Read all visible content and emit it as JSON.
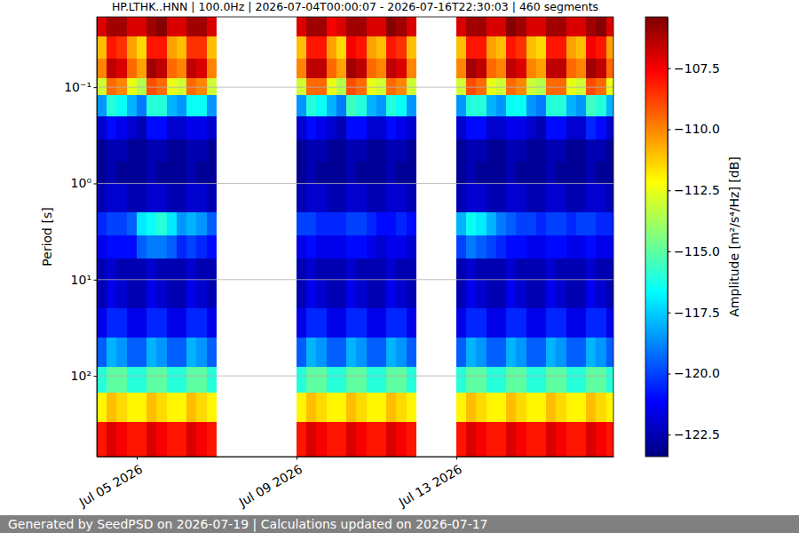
{
  "chart_data": {
    "type": "heatmap",
    "title": "HP.LTHK..HNN | 100.0Hz | 2026-07-04T00:00:07 - 2026-07-16T22:30:03 | 460 segments",
    "footer": "Generated by SeedPSD on 2026-07-19 | Calculations updated on 2026-07-17",
    "y_label": "Period [s]",
    "log": "y",
    "grid": "y",
    "xlim": [
      "2026-07-04T00:00:07",
      "2026-07-16T22:30:03"
    ],
    "xticks": [
      {
        "value": "2026-07-05T00:00:00",
        "label": "Jul 05 2026"
      },
      {
        "value": "2026-07-09T00:00:00",
        "label": "Jul 09 2026"
      },
      {
        "value": "2026-07-13T00:00:00",
        "label": "Jul 13 2026"
      }
    ],
    "ylim": [
      0.0186,
      690
    ],
    "yticks": [
      {
        "value": 0.1,
        "label": "10⁻¹"
      },
      {
        "value": 1,
        "label": "10⁰"
      },
      {
        "value": 10,
        "label": "10¹"
      },
      {
        "value": 100,
        "label": "10²"
      }
    ],
    "x_edges": [
      "2026-07-04T00:00:00",
      "2026-07-04T06:00:00",
      "2026-07-04T12:00:00",
      "2026-07-04T18:00:00",
      "2026-07-05T00:00:00",
      "2026-07-05T06:00:00",
      "2026-07-05T12:00:00",
      "2026-07-05T18:00:00",
      "2026-07-06T00:00:00",
      "2026-07-06T06:00:00",
      "2026-07-06T12:00:00",
      "2026-07-06T18:00:00",
      "2026-07-07T00:00:00",
      "2026-07-07T06:00:00",
      "2026-07-07T12:00:00",
      "2026-07-07T18:00:00",
      "2026-07-08T00:00:00",
      "2026-07-08T06:00:00",
      "2026-07-08T12:00:00",
      "2026-07-08T18:00:00",
      "2026-07-09T00:00:00",
      "2026-07-09T06:00:00",
      "2026-07-09T12:00:00",
      "2026-07-09T18:00:00",
      "2026-07-10T00:00:00",
      "2026-07-10T06:00:00",
      "2026-07-10T12:00:00",
      "2026-07-10T18:00:00",
      "2026-07-11T00:00:00",
      "2026-07-11T06:00:00",
      "2026-07-11T12:00:00",
      "2026-07-11T18:00:00",
      "2026-07-12T00:00:00",
      "2026-07-12T06:00:00",
      "2026-07-12T12:00:00",
      "2026-07-12T18:00:00",
      "2026-07-13T00:00:00",
      "2026-07-13T06:00:00",
      "2026-07-13T12:00:00",
      "2026-07-13T18:00:00",
      "2026-07-14T00:00:00",
      "2026-07-14T06:00:00",
      "2026-07-14T12:00:00",
      "2026-07-14T18:00:00",
      "2026-07-15T00:00:00",
      "2026-07-15T06:00:00",
      "2026-07-15T12:00:00",
      "2026-07-15T18:00:00",
      "2026-07-16T00:00:00",
      "2026-07-16T06:00:00",
      "2026-07-16T12:00:00",
      "2026-07-16T18:00:00",
      "2026-07-17T00:00:00"
    ],
    "y_edges": [
      0.0186,
      0.03,
      0.05,
      0.08,
      0.12,
      0.2,
      0.35,
      0.6,
      1,
      2,
      3.5,
      6,
      10,
      20,
      40,
      80,
      150,
      300,
      690
    ],
    "z": [
      [
        -107,
        -106,
        -106,
        -107,
        -107,
        -106,
        -105.5,
        -107,
        -107,
        -106,
        -106,
        -107,
        null,
        null,
        null,
        null,
        null,
        null,
        null,
        null,
        -107,
        -106,
        -106,
        -107.5,
        -107,
        -106,
        -106,
        -107,
        -107,
        -105.5,
        -106,
        -107,
        null,
        null,
        null,
        null,
        -107,
        -106,
        -106,
        -107,
        -107,
        -105.5,
        -106,
        -107,
        -107,
        -106,
        -106,
        -107,
        -107,
        -106,
        -105.5,
        -107
      ],
      [
        -111,
        -108,
        -108.5,
        -110.5,
        -111.5,
        -108,
        -108,
        -110.5,
        -111,
        -108.5,
        -108.5,
        -111,
        null,
        null,
        null,
        null,
        null,
        null,
        null,
        null,
        -111,
        -108,
        -108,
        -110.5,
        -111.5,
        -107.5,
        -108,
        -110.5,
        -111,
        -108,
        -108.5,
        -111,
        null,
        null,
        null,
        null,
        -111,
        -108,
        -108,
        -110.5,
        -111,
        -108,
        -108.5,
        -111,
        -111.5,
        -108,
        -108,
        -110.5,
        -111,
        -107.5,
        -108,
        -110.5
      ],
      [
        -110,
        -106.5,
        -107,
        -109.5,
        -110.5,
        -106,
        -106.5,
        -109.5,
        -110,
        -106.5,
        -107,
        -110,
        null,
        null,
        null,
        null,
        null,
        null,
        null,
        null,
        -110,
        -106.5,
        -106.5,
        -109.5,
        -110.5,
        -106,
        -106.5,
        -109.5,
        -110,
        -106.5,
        -107,
        -110,
        null,
        null,
        null,
        null,
        -110,
        -106,
        -106.5,
        -109.5,
        -110,
        -106.5,
        -107,
        -110,
        -110.5,
        -106.5,
        -106.5,
        -109.5,
        -110,
        -106,
        -106.5,
        -109.5
      ],
      [
        -113,
        -109.5,
        -110,
        -112.5,
        -113.5,
        -109,
        -109.5,
        -112.5,
        -113,
        -109.5,
        -110,
        -113,
        null,
        null,
        null,
        null,
        null,
        null,
        null,
        null,
        -113,
        -109.5,
        -109.5,
        -112.5,
        -113.5,
        -109,
        -109.5,
        -112.5,
        -113,
        -109.5,
        -110,
        -113,
        null,
        null,
        null,
        null,
        -113,
        -109,
        -109.5,
        -112.5,
        -113,
        -109.5,
        -110,
        -113,
        -113.5,
        -109.5,
        -109.5,
        -112.5,
        -113,
        -109,
        -109.5,
        -112.5
      ],
      [
        -118.5,
        -116,
        -116.5,
        -118,
        -119,
        -116,
        -116,
        -118,
        -118.5,
        -116.5,
        -116.5,
        -118.5,
        null,
        null,
        null,
        null,
        null,
        null,
        null,
        null,
        -118.5,
        -116,
        -116.5,
        -118,
        -119,
        -115.5,
        -116,
        -118,
        -118.5,
        -116,
        -116.5,
        -118.5,
        null,
        null,
        null,
        null,
        -118.5,
        -116,
        -116,
        -118,
        -118.5,
        -116.5,
        -116.5,
        -118.5,
        -119,
        -116,
        -116,
        -118,
        -118.5,
        -115.5,
        -116,
        -118
      ],
      [
        -122,
        -121,
        -121.5,
        -122,
        -122.5,
        -121,
        -121,
        -122,
        -122,
        -121.5,
        -121.5,
        -122,
        null,
        null,
        null,
        null,
        null,
        null,
        null,
        null,
        -122,
        -121,
        -121.5,
        -122,
        -122.5,
        -121,
        -121,
        -122,
        -122,
        -121,
        -121.5,
        -122,
        null,
        null,
        null,
        null,
        -122,
        -121,
        -121,
        -122,
        -122,
        -121.5,
        -121.5,
        -122,
        -122.5,
        -121,
        -121,
        -122,
        -122,
        -120.5,
        -121,
        -122
      ],
      [
        -123,
        -122.5,
        -122.5,
        -123,
        -123,
        -122.5,
        -122.5,
        -123,
        -123,
        -122.5,
        -122.5,
        -123,
        null,
        null,
        null,
        null,
        null,
        null,
        null,
        null,
        -123,
        -122.5,
        -122.5,
        -123,
        -123,
        -122.5,
        -122.5,
        -123,
        -123,
        -122.5,
        -122.5,
        -123,
        null,
        null,
        null,
        null,
        -123,
        -122.5,
        -122.5,
        -123,
        -123,
        -122.5,
        -122.5,
        -123,
        -123,
        -122.5,
        -122.5,
        -123,
        -123,
        -122.5,
        -122.5,
        -123
      ],
      [
        -123,
        -122.5,
        -123,
        -123,
        -123,
        -122.5,
        -123,
        -123,
        -123,
        -122.5,
        -123,
        -123,
        null,
        null,
        null,
        null,
        null,
        null,
        null,
        null,
        -123,
        -122.5,
        -123,
        -123,
        -123,
        -122.5,
        -123,
        -123,
        -123,
        -122.5,
        -123,
        -123,
        null,
        null,
        null,
        null,
        -123,
        -122.5,
        -123,
        -123,
        -123,
        -122.5,
        -123,
        -123,
        -123,
        -122.5,
        -123,
        -123,
        -123,
        -122.5,
        -123,
        -123
      ],
      [
        -122.5,
        -122,
        -122,
        -122.5,
        -122.5,
        -122,
        -122,
        -122.5,
        -122.5,
        -122,
        -122,
        -122.5,
        null,
        null,
        null,
        null,
        null,
        null,
        null,
        null,
        -122.5,
        -122,
        -122,
        -122.5,
        -122.5,
        -122,
        -122,
        -122.5,
        -122.5,
        -122,
        -122,
        -122.5,
        null,
        null,
        null,
        null,
        -122.5,
        -122,
        -122,
        -122.5,
        -122.5,
        -122,
        -122,
        -122.5,
        -122.5,
        -122,
        -122,
        -122.5,
        -122.5,
        -122,
        -122,
        -122.5
      ],
      [
        -120.5,
        -120,
        -120,
        -119.5,
        -117,
        -116.5,
        -116,
        -117,
        -118.5,
        -118,
        -118.5,
        -119.5,
        null,
        null,
        null,
        null,
        null,
        null,
        null,
        null,
        -120,
        -120,
        -120.5,
        -120.5,
        -120.5,
        -120,
        -120,
        -120.5,
        -121,
        -121,
        -120.5,
        -121,
        null,
        null,
        null,
        null,
        -118,
        -116.5,
        -117,
        -118,
        -119,
        -119.5,
        -120,
        -120,
        -120.5,
        -120,
        -120,
        -120.5,
        -120,
        -120,
        -120.5,
        -120.5
      ],
      [
        -121.5,
        -121,
        -121,
        -121,
        -119.5,
        -119,
        -119,
        -119.5,
        -120.5,
        -120,
        -120.5,
        -121,
        null,
        null,
        null,
        null,
        null,
        null,
        null,
        null,
        -121.5,
        -121,
        -121.5,
        -121.5,
        -121.5,
        -121,
        -121,
        -121.5,
        -122,
        -121.5,
        -121.5,
        -122,
        null,
        null,
        null,
        null,
        -120,
        -119,
        -119.5,
        -120,
        -120.5,
        -121,
        -121,
        -121.5,
        -121.5,
        -121,
        -121,
        -121.5,
        -121.5,
        -121,
        -121.5,
        -121.5
      ],
      [
        -122.5,
        -122,
        -122.5,
        -122.5,
        -122.5,
        -122,
        -122.5,
        -122.5,
        -122.5,
        -122,
        -122.5,
        -122.5,
        null,
        null,
        null,
        null,
        null,
        null,
        null,
        null,
        -122.5,
        -122,
        -122.5,
        -122.5,
        -122.5,
        -122,
        -122.5,
        -122.5,
        -122.5,
        -122,
        -122.5,
        -122.5,
        null,
        null,
        null,
        null,
        -122.5,
        -122,
        -122.5,
        -122.5,
        -122.5,
        -122,
        -122.5,
        -122.5,
        -122.5,
        -122,
        -122.5,
        -122.5,
        -122.5,
        -122,
        -122.5,
        -122.5
      ],
      [
        -122.5,
        -121.5,
        -122,
        -122.5,
        -122.5,
        -121.5,
        -122,
        -122.5,
        -122.5,
        -121.5,
        -122,
        -122.5,
        null,
        null,
        null,
        null,
        null,
        null,
        null,
        null,
        -122.5,
        -121.5,
        -122,
        -122.5,
        -122.5,
        -121.5,
        -122,
        -122.5,
        -122.5,
        -121.5,
        -122,
        -122.5,
        null,
        null,
        null,
        null,
        -122.5,
        -121.5,
        -122,
        -122.5,
        -122.5,
        -121.5,
        -122,
        -122.5,
        -122.5,
        -121.5,
        -122,
        -122.5,
        -122.5,
        -121.5,
        -122,
        -122.5
      ],
      [
        -121.5,
        -120.5,
        -120.5,
        -121.5,
        -121.5,
        -120.5,
        -120.5,
        -121.5,
        -121.5,
        -120.5,
        -120.5,
        -121.5,
        null,
        null,
        null,
        null,
        null,
        null,
        null,
        null,
        -121.5,
        -120.5,
        -120.5,
        -121.5,
        -121.5,
        -120.5,
        -120.5,
        -121.5,
        -121.5,
        -120.5,
        -120.5,
        -121.5,
        null,
        null,
        null,
        null,
        -121.5,
        -120.5,
        -120.5,
        -121.5,
        -121.5,
        -120.5,
        -120.5,
        -121.5,
        -121.5,
        -120.5,
        -120.5,
        -121.5,
        -121.5,
        -120.5,
        -120.5,
        -121.5
      ],
      [
        -119.5,
        -118,
        -118.5,
        -119.5,
        -119.5,
        -118,
        -118.5,
        -119.5,
        -119.5,
        -118,
        -118.5,
        -119.5,
        null,
        null,
        null,
        null,
        null,
        null,
        null,
        null,
        -119.5,
        -118,
        -118.5,
        -119.5,
        -119.5,
        -118,
        -118.5,
        -119.5,
        -119.5,
        -118,
        -118.5,
        -119.5,
        null,
        null,
        null,
        null,
        -119.5,
        -118,
        -118.5,
        -119.5,
        -119.5,
        -118,
        -118.5,
        -119.5,
        -119.5,
        -118,
        -118.5,
        -119.5,
        -119.5,
        -118,
        -118.5,
        -119.5
      ],
      [
        -116,
        -115,
        -115,
        -116,
        -116,
        -115,
        -115,
        -116,
        -116,
        -115,
        -115,
        -116,
        null,
        null,
        null,
        null,
        null,
        null,
        null,
        null,
        -116,
        -115,
        -115,
        -116,
        -116,
        -115,
        -115,
        -116,
        -116,
        -115,
        -115,
        -116,
        null,
        null,
        null,
        null,
        -116,
        -115,
        -115,
        -116,
        -116,
        -115,
        -115,
        -116,
        -116,
        -115,
        -115,
        -116,
        -116,
        -115,
        -115,
        -116
      ],
      [
        -112,
        -111,
        -111.5,
        -112,
        -112,
        -111,
        -111.5,
        -112,
        -112,
        -111,
        -111.5,
        -112,
        null,
        null,
        null,
        null,
        null,
        null,
        null,
        null,
        -112,
        -111,
        -111.5,
        -112,
        -112,
        -111,
        -111.5,
        -112,
        -112,
        -111,
        -111.5,
        -112,
        null,
        null,
        null,
        null,
        -112,
        -111,
        -111.5,
        -112,
        -112,
        -111,
        -111.5,
        -112,
        -112,
        -111,
        -111.5,
        -112,
        -112,
        -111,
        -111.5,
        -112
      ],
      [
        -108,
        -107,
        -107.5,
        -108,
        -108,
        -107,
        -107.5,
        -108,
        -108,
        -107,
        -107.5,
        -108,
        null,
        null,
        null,
        null,
        null,
        null,
        null,
        null,
        -108,
        -107,
        -107.5,
        -108,
        -108,
        -107,
        -107.5,
        -108,
        -108,
        -107,
        -107.5,
        -108,
        null,
        null,
        null,
        null,
        -108,
        -107,
        -107.5,
        -108,
        -108,
        -107,
        -107.5,
        -108,
        -108,
        -107,
        -107.5,
        -108,
        -108,
        -107,
        -107.5,
        -108
      ]
    ],
    "colorbar": {
      "label": "Amplitude [m²/s⁴/Hz] [dB]",
      "range": [
        -123.4,
        -105.4
      ],
      "ticks": [
        {
          "value": -122.5,
          "label": "−122.5"
        },
        {
          "value": -120,
          "label": "−120.0"
        },
        {
          "value": -117.5,
          "label": "−117.5"
        },
        {
          "value": -115,
          "label": "−115.0"
        },
        {
          "value": -112.5,
          "label": "−112.5"
        },
        {
          "value": -110,
          "label": "−110.0"
        },
        {
          "value": -107.5,
          "label": "−107.5"
        }
      ]
    }
  }
}
